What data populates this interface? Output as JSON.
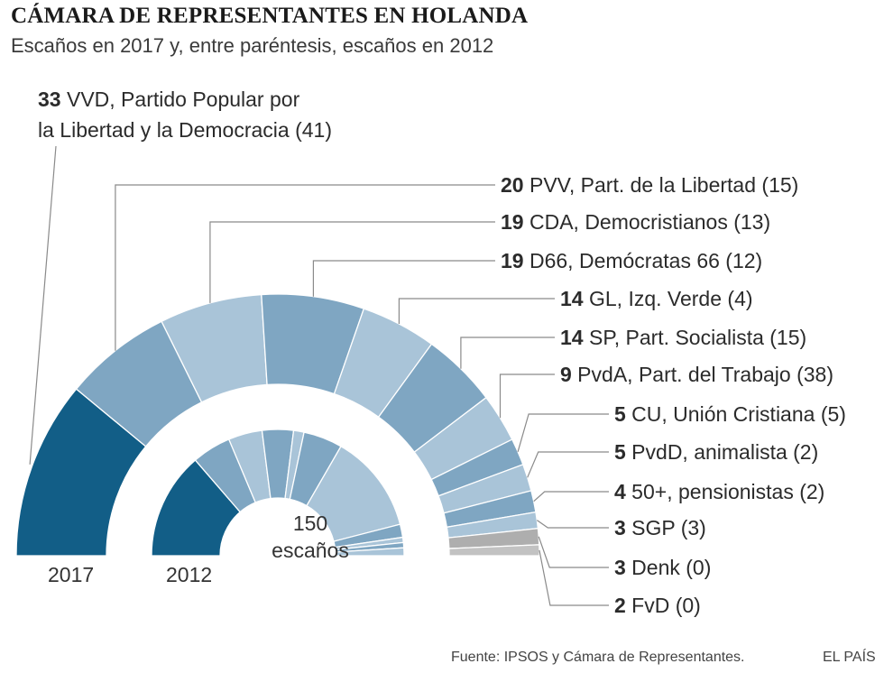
{
  "header": {
    "title": "CÁMARA DE REPRESENTANTES EN HOLANDA",
    "subtitle": "Escaños en 2017 y, entre paréntesis, escaños en 2012"
  },
  "footer": {
    "source": "Fuente: IPSOS y Cámara de Representantes.",
    "brand": "EL PAÍS"
  },
  "chart_data": {
    "type": "pie",
    "subtype": "nested-semicircle",
    "title": "CÁMARA DE REPRESENTANTES EN HOLANDA",
    "subtitle": "Escaños en 2017 y, entre paréntesis, escaños en 2012",
    "total_seats": 150,
    "center_label": [
      "150",
      "escaños"
    ],
    "ring_labels": {
      "outer": "2017",
      "inner": "2012"
    },
    "parties": [
      {
        "seats_2017": 33,
        "label_lines": [
          "VVD, Partido Popular por",
          "la Libertad y la Democracia (41)"
        ],
        "seats_2012": 41,
        "color": "#125e87"
      },
      {
        "seats_2017": 20,
        "label_lines": [
          "PVV, Part. de la Libertad (15)"
        ],
        "seats_2012": 15,
        "color": "#7fa6c2"
      },
      {
        "seats_2017": 19,
        "label_lines": [
          "CDA, Democristianos (13)"
        ],
        "seats_2012": 13,
        "color": "#a9c4d8"
      },
      {
        "seats_2017": 19,
        "label_lines": [
          "D66, Demócratas 66 (12)"
        ],
        "seats_2012": 12,
        "color": "#7fa6c2"
      },
      {
        "seats_2017": 14,
        "label_lines": [
          "GL, Izq. Verde (4)"
        ],
        "seats_2012": 4,
        "color": "#a9c4d8"
      },
      {
        "seats_2017": 14,
        "label_lines": [
          "SP, Part. Socialista (15)"
        ],
        "seats_2012": 15,
        "color": "#7fa6c2"
      },
      {
        "seats_2017": 9,
        "label_lines": [
          "PvdA, Part. del Trabajo (38)"
        ],
        "seats_2012": 38,
        "color": "#a9c4d8"
      },
      {
        "seats_2017": 5,
        "label_lines": [
          "CU, Unión Cristiana (5)"
        ],
        "seats_2012": 5,
        "color": "#7fa6c2"
      },
      {
        "seats_2017": 5,
        "label_lines": [
          "PvdD, animalista (2)"
        ],
        "seats_2012": 2,
        "color": "#a9c4d8"
      },
      {
        "seats_2017": 4,
        "label_lines": [
          "50+, pensionistas (2)"
        ],
        "seats_2012": 2,
        "color": "#7fa6c2"
      },
      {
        "seats_2017": 3,
        "label_lines": [
          "SGP (3)"
        ],
        "seats_2012": 3,
        "color": "#a9c4d8"
      },
      {
        "seats_2017": 3,
        "label_lines": [
          "Denk (0)"
        ],
        "seats_2012": 0,
        "color": "#aeaeae"
      },
      {
        "seats_2017": 2,
        "label_lines": [
          "FvD (0)"
        ],
        "seats_2012": 0,
        "color": "#c2c2c2"
      }
    ]
  }
}
